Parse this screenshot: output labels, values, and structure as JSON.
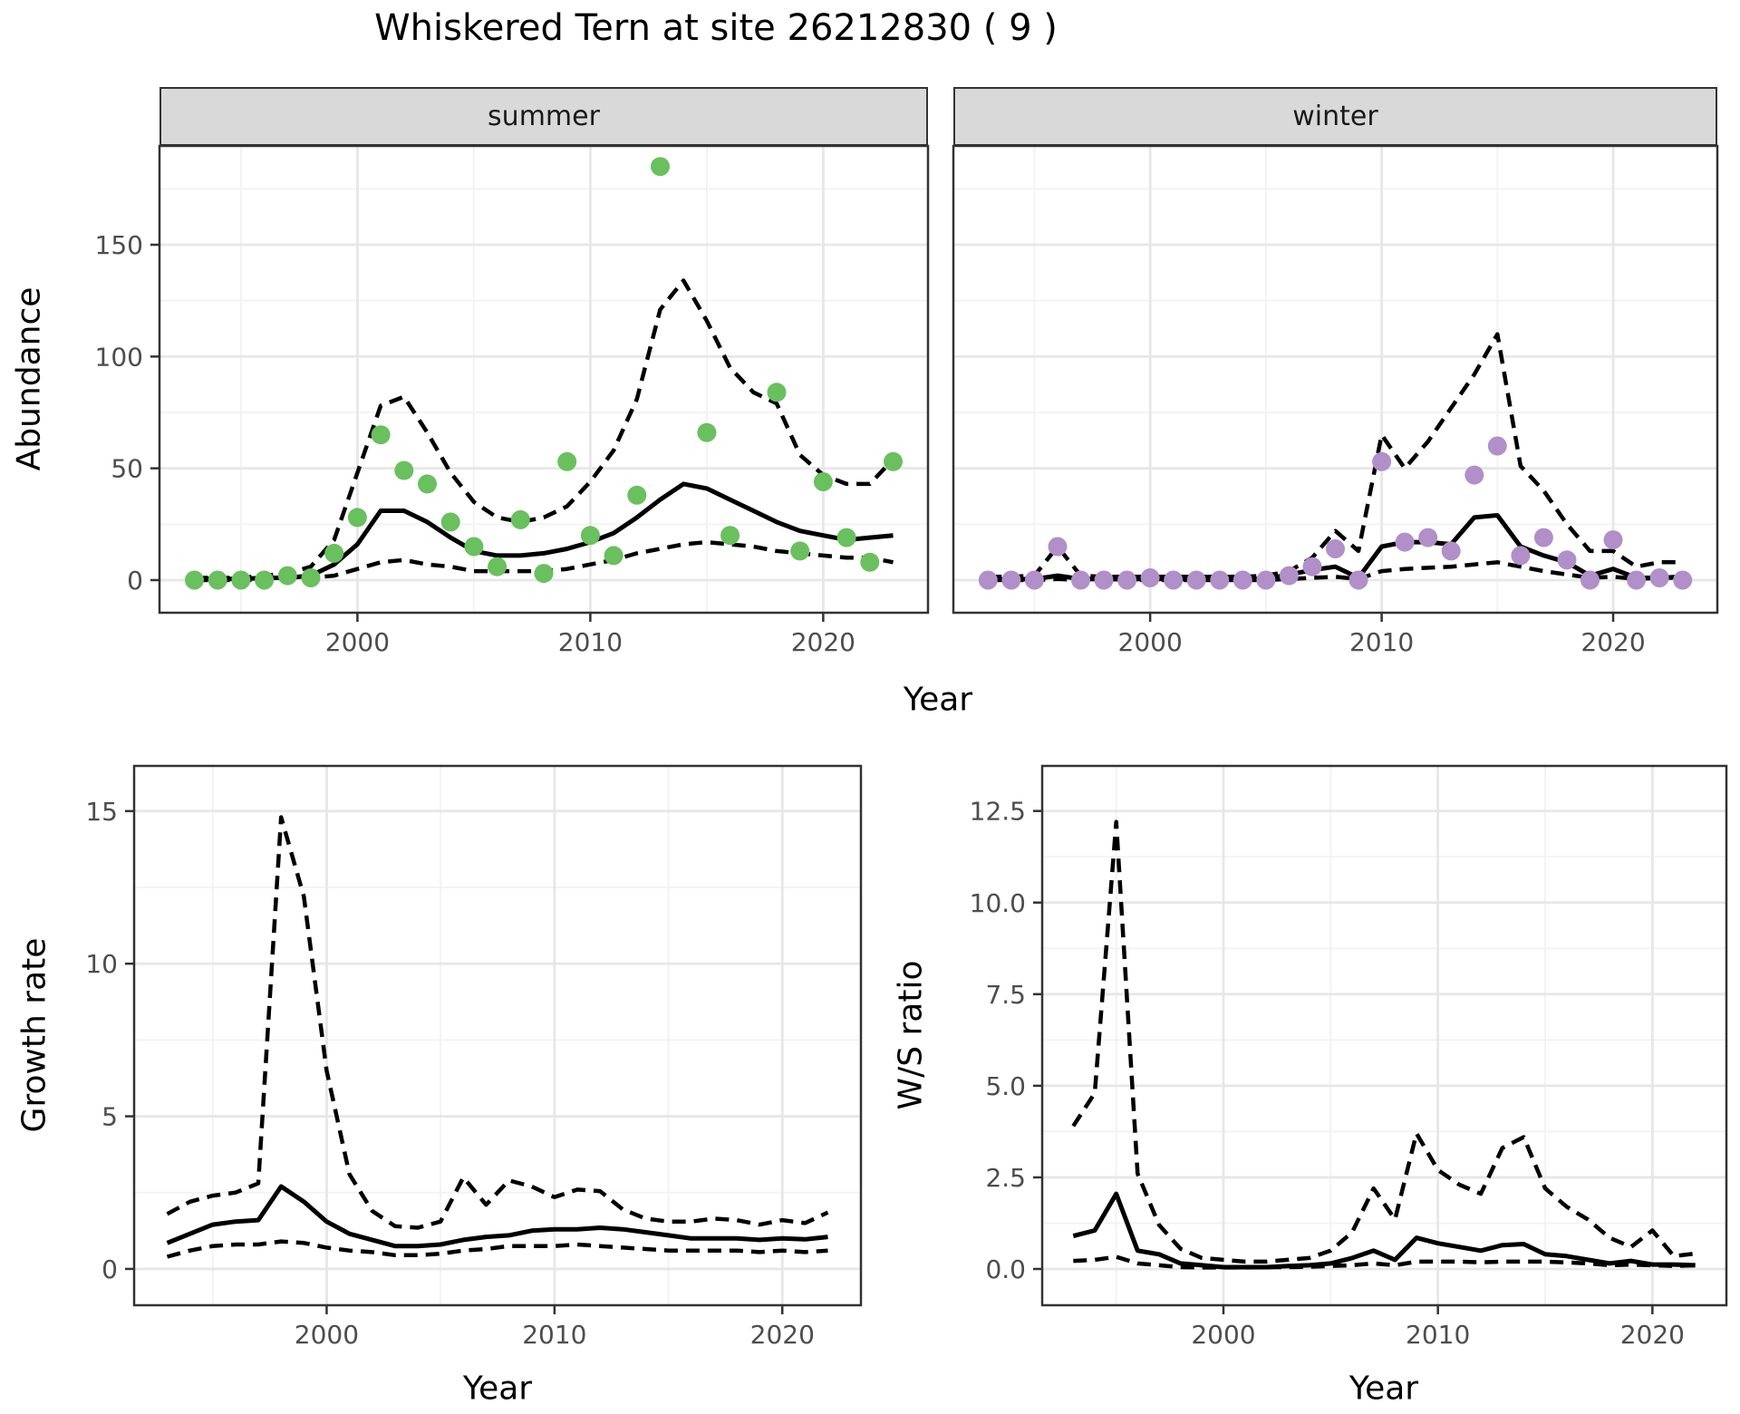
{
  "title": "Whiskered Tern at site 26212830 ( 9 )",
  "shared_x_label": "Year",
  "colors": {
    "summer_dot": "#6abf5f",
    "winter_dot": "#b18fc9",
    "line": "#000000",
    "strip_bg": "#d9d9d9",
    "panel_border": "#333333",
    "grid_major": "#e7e7e7",
    "grid_minor": "#f3f3f3",
    "tick_text": "#4d4d4d"
  },
  "chart_data": [
    {
      "id": "abundance_summer",
      "type": "scatter",
      "facet_label": "summer",
      "ylabel": "Abundance",
      "xlabel": "Year",
      "xlim": [
        1991.5,
        2024.5
      ],
      "ylim": [
        -14.6,
        194.2
      ],
      "xticks": {
        "values": [
          2000,
          2010,
          2020
        ],
        "labels": [
          "2000",
          "2010",
          "2020"
        ]
      },
      "yticks": {
        "values": [
          0,
          50,
          100,
          150
        ],
        "labels": [
          "0",
          "50",
          "100",
          "150"
        ]
      },
      "points": {
        "x": [
          1993,
          1994,
          1995,
          1996,
          1997,
          1998,
          1999,
          2000,
          2001,
          2002,
          2003,
          2004,
          2005,
          2006,
          2007,
          2008,
          2009,
          2010,
          2011,
          2012,
          2013,
          2015,
          2016,
          2018,
          2019,
          2020,
          2021,
          2022,
          2023
        ],
        "y": [
          0,
          0,
          0,
          0,
          2,
          1,
          12,
          28,
          65,
          49,
          43,
          26,
          15,
          6,
          27,
          3,
          53,
          20,
          11,
          38,
          185,
          66,
          20,
          84,
          13,
          44,
          19,
          8,
          53
        ]
      },
      "series": [
        {
          "name": "mean",
          "style": "solid",
          "x": [
            1993,
            1994,
            1995,
            1996,
            1997,
            1998,
            1999,
            2000,
            2001,
            2002,
            2003,
            2004,
            2005,
            2006,
            2007,
            2008,
            2009,
            2010,
            2011,
            2012,
            2013,
            2014,
            2015,
            2016,
            2017,
            2018,
            2019,
            2020,
            2021,
            2022,
            2023
          ],
          "y": [
            0.5,
            0.5,
            0.5,
            1,
            1,
            2,
            7,
            16,
            31,
            31,
            26,
            19,
            13,
            11,
            11,
            12,
            14,
            17,
            21,
            28,
            36,
            43,
            41,
            36,
            31,
            26,
            22,
            20,
            18,
            19,
            20
          ]
        },
        {
          "name": "upper_ci",
          "style": "dashed",
          "x": [
            1993,
            1994,
            1995,
            1996,
            1997,
            1998,
            1999,
            2000,
            2001,
            2002,
            2003,
            2004,
            2005,
            2006,
            2007,
            2008,
            2009,
            2010,
            2011,
            2012,
            2013,
            2014,
            2015,
            2016,
            2017,
            2018,
            2019,
            2020,
            2021,
            2022,
            2023
          ],
          "y": [
            1,
            1,
            1,
            2,
            3,
            6,
            18,
            48,
            78,
            82,
            66,
            48,
            35,
            28,
            26,
            28,
            33,
            44,
            58,
            81,
            121,
            134,
            116,
            95,
            84,
            79,
            56,
            47,
            43,
            43,
            54
          ]
        },
        {
          "name": "lower_ci",
          "style": "dashed",
          "x": [
            1993,
            1994,
            1995,
            1996,
            1997,
            1998,
            1999,
            2000,
            2001,
            2002,
            2003,
            2004,
            2005,
            2006,
            2007,
            2008,
            2009,
            2010,
            2011,
            2012,
            2013,
            2014,
            2015,
            2016,
            2017,
            2018,
            2019,
            2020,
            2021,
            2022,
            2023
          ],
          "y": [
            0,
            0,
            0,
            0,
            0.5,
            1,
            2,
            5,
            8,
            9,
            7,
            6,
            4,
            4,
            4,
            4,
            5,
            7,
            9,
            12,
            14,
            16,
            17,
            16,
            15,
            13,
            12,
            11,
            10,
            10,
            8
          ]
        }
      ]
    },
    {
      "id": "abundance_winter",
      "type": "scatter",
      "facet_label": "winter",
      "ylabel": "Abundance",
      "xlabel": "Year",
      "xlim": [
        1991.5,
        2024.5
      ],
      "ylim": [
        -14.6,
        194.2
      ],
      "xticks": {
        "values": [
          2000,
          2010,
          2020
        ],
        "labels": [
          "2000",
          "2010",
          "2020"
        ]
      },
      "yticks": {
        "values": [
          0,
          50,
          100,
          150
        ],
        "labels": [
          "0",
          "50",
          "100",
          "150"
        ]
      },
      "points": {
        "x": [
          1993,
          1994,
          1995,
          1996,
          1997,
          1998,
          1999,
          2000,
          2001,
          2002,
          2003,
          2004,
          2005,
          2006,
          2007,
          2008,
          2009,
          2010,
          2011,
          2012,
          2013,
          2014,
          2015,
          2016,
          2017,
          2018,
          2019,
          2020,
          2021,
          2022,
          2023
        ],
        "y": [
          0,
          0,
          0,
          15,
          0,
          0,
          0,
          1,
          0,
          0,
          0,
          0,
          0,
          2,
          6,
          14,
          0,
          53,
          17,
          19,
          13,
          47,
          60,
          11,
          19,
          9,
          0,
          18,
          0,
          1,
          0
        ]
      },
      "series": [
        {
          "name": "mean",
          "style": "solid",
          "x": [
            1993,
            1994,
            1995,
            1996,
            1997,
            1998,
            1999,
            2000,
            2001,
            2002,
            2003,
            2004,
            2005,
            2006,
            2007,
            2008,
            2009,
            2010,
            2011,
            2012,
            2013,
            2014,
            2015,
            2016,
            2017,
            2018,
            2019,
            2020,
            2021,
            2022,
            2023
          ],
          "y": [
            0.3,
            0.3,
            0.5,
            2,
            0.5,
            0.4,
            0.4,
            0.5,
            0.5,
            0.4,
            0.4,
            0.4,
            0.5,
            2.5,
            4.5,
            6,
            1,
            15,
            17,
            17,
            16,
            28,
            29,
            15,
            11,
            8,
            2,
            5,
            1,
            1,
            1.5
          ]
        },
        {
          "name": "upper_ci",
          "style": "dashed",
          "x": [
            1993,
            1994,
            1995,
            1996,
            1997,
            1998,
            1999,
            2000,
            2001,
            2002,
            2003,
            2004,
            2005,
            2006,
            2007,
            2008,
            2009,
            2010,
            2011,
            2012,
            2013,
            2014,
            2015,
            2016,
            2017,
            2018,
            2019,
            2020,
            2021,
            2022,
            2023
          ],
          "y": [
            1.5,
            1.5,
            2,
            15,
            2,
            1.5,
            1.5,
            1.5,
            1.5,
            1.5,
            1.5,
            1.5,
            2,
            4,
            10,
            22,
            13,
            65,
            50,
            62,
            77,
            92,
            110,
            51,
            40,
            25,
            13,
            13,
            6,
            8,
            8
          ]
        },
        {
          "name": "lower_ci",
          "style": "dashed",
          "x": [
            1993,
            1994,
            1995,
            1996,
            1997,
            1998,
            1999,
            2000,
            2001,
            2002,
            2003,
            2004,
            2005,
            2006,
            2007,
            2008,
            2009,
            2010,
            2011,
            2012,
            2013,
            2014,
            2015,
            2016,
            2017,
            2018,
            2019,
            2020,
            2021,
            2022,
            2023
          ],
          "y": [
            0,
            0,
            0,
            0.5,
            0,
            0,
            0,
            0,
            0,
            0,
            0,
            0,
            0,
            0.5,
            1,
            1.5,
            0.5,
            4,
            5,
            5.5,
            6,
            7,
            8,
            6,
            4,
            2.5,
            1,
            1.5,
            0.5,
            1,
            1
          ]
        }
      ]
    },
    {
      "id": "growth_rate",
      "type": "line",
      "facet_label": "",
      "ylabel": "Growth rate",
      "xlabel": "Year",
      "xlim": [
        1991.55,
        2023.45
      ],
      "ylim": [
        -1.19,
        16.48
      ],
      "xticks": {
        "values": [
          2000,
          2010,
          2020
        ],
        "labels": [
          "2000",
          "2010",
          "2020"
        ]
      },
      "yticks": {
        "values": [
          0,
          5,
          10,
          15
        ],
        "labels": [
          "0",
          "5",
          "10",
          "15"
        ]
      },
      "series": [
        {
          "name": "mean",
          "style": "solid",
          "x": [
            1993,
            1994,
            1995,
            1996,
            1997,
            1998,
            1999,
            2000,
            2001,
            2002,
            2003,
            2004,
            2005,
            2006,
            2007,
            2008,
            2009,
            2010,
            2011,
            2012,
            2013,
            2014,
            2015,
            2016,
            2017,
            2018,
            2019,
            2020,
            2021,
            2022
          ],
          "y": [
            0.85,
            1.15,
            1.45,
            1.55,
            1.6,
            2.7,
            2.2,
            1.55,
            1.15,
            0.95,
            0.75,
            0.75,
            0.8,
            0.95,
            1.05,
            1.1,
            1.25,
            1.3,
            1.3,
            1.35,
            1.3,
            1.2,
            1.1,
            1.0,
            1.0,
            1.0,
            0.95,
            1.0,
            0.97,
            1.05
          ]
        },
        {
          "name": "upper_ci",
          "style": "dashed",
          "x": [
            1993,
            1994,
            1995,
            1996,
            1997,
            1998,
            1999,
            2000,
            2001,
            2002,
            2003,
            2004,
            2005,
            2006,
            2007,
            2008,
            2009,
            2010,
            2011,
            2012,
            2013,
            2014,
            2015,
            2016,
            2017,
            2018,
            2019,
            2020,
            2021,
            2022
          ],
          "y": [
            1.8,
            2.2,
            2.4,
            2.5,
            2.8,
            14.8,
            12.2,
            6.5,
            3.1,
            1.9,
            1.4,
            1.35,
            1.55,
            3.0,
            2.1,
            2.9,
            2.7,
            2.35,
            2.6,
            2.55,
            1.95,
            1.65,
            1.55,
            1.55,
            1.65,
            1.6,
            1.45,
            1.6,
            1.5,
            1.85
          ]
        },
        {
          "name": "lower_ci",
          "style": "dashed",
          "x": [
            1993,
            1994,
            1995,
            1996,
            1997,
            1998,
            1999,
            2000,
            2001,
            2002,
            2003,
            2004,
            2005,
            2006,
            2007,
            2008,
            2009,
            2010,
            2011,
            2012,
            2013,
            2014,
            2015,
            2016,
            2017,
            2018,
            2019,
            2020,
            2021,
            2022
          ],
          "y": [
            0.4,
            0.6,
            0.75,
            0.8,
            0.8,
            0.9,
            0.85,
            0.7,
            0.6,
            0.55,
            0.45,
            0.45,
            0.5,
            0.6,
            0.65,
            0.75,
            0.75,
            0.75,
            0.8,
            0.75,
            0.7,
            0.65,
            0.6,
            0.6,
            0.6,
            0.6,
            0.55,
            0.6,
            0.55,
            0.6
          ]
        }
      ]
    },
    {
      "id": "ws_ratio",
      "type": "line",
      "facet_label": "",
      "ylabel": "W/S ratio",
      "xlabel": "Year",
      "xlim": [
        1991.55,
        2023.45
      ],
      "ylim": [
        -0.99,
        13.73
      ],
      "xticks": {
        "values": [
          2000,
          2010,
          2020
        ],
        "labels": [
          "2000",
          "2010",
          "2020"
        ]
      },
      "yticks": {
        "values": [
          0,
          2.5,
          5,
          7.5,
          10,
          12.5
        ],
        "labels": [
          "0.0",
          "2.5",
          "5.0",
          "7.5",
          "10.0",
          "12.5"
        ]
      },
      "series": [
        {
          "name": "mean",
          "style": "solid",
          "x": [
            1993,
            1994,
            1995,
            1996,
            1997,
            1998,
            1999,
            2000,
            2001,
            2002,
            2003,
            2004,
            2005,
            2006,
            2007,
            2008,
            2009,
            2010,
            2011,
            2012,
            2013,
            2014,
            2015,
            2016,
            2017,
            2018,
            2019,
            2020,
            2021,
            2022
          ],
          "y": [
            0.9,
            1.05,
            2.05,
            0.5,
            0.4,
            0.15,
            0.1,
            0.05,
            0.05,
            0.05,
            0.08,
            0.1,
            0.15,
            0.3,
            0.5,
            0.25,
            0.85,
            0.7,
            0.6,
            0.5,
            0.65,
            0.68,
            0.4,
            0.35,
            0.25,
            0.15,
            0.22,
            0.12,
            0.12,
            0.1
          ]
        },
        {
          "name": "upper_ci",
          "style": "dashed",
          "x": [
            1993,
            1994,
            1995,
            1996,
            1997,
            1998,
            1999,
            2000,
            2001,
            2002,
            2003,
            2004,
            2005,
            2006,
            2007,
            2008,
            2009,
            2010,
            2011,
            2012,
            2013,
            2014,
            2015,
            2016,
            2017,
            2018,
            2019,
            2020,
            2021,
            2022
          ],
          "y": [
            3.9,
            4.8,
            12.2,
            2.6,
            1.2,
            0.55,
            0.3,
            0.25,
            0.2,
            0.2,
            0.25,
            0.3,
            0.5,
            1.0,
            2.2,
            1.35,
            3.7,
            2.7,
            2.3,
            2.05,
            3.3,
            3.6,
            2.2,
            1.7,
            1.35,
            0.85,
            0.6,
            1.05,
            0.35,
            0.42
          ]
        },
        {
          "name": "lower_ci",
          "style": "dashed",
          "x": [
            1993,
            1994,
            1995,
            1996,
            1997,
            1998,
            1999,
            2000,
            2001,
            2002,
            2003,
            2004,
            2005,
            2006,
            2007,
            2008,
            2009,
            2010,
            2011,
            2012,
            2013,
            2014,
            2015,
            2016,
            2017,
            2018,
            2019,
            2020,
            2021,
            2022
          ],
          "y": [
            0.22,
            0.25,
            0.33,
            0.15,
            0.1,
            0.05,
            0.04,
            0.04,
            0.04,
            0.05,
            0.05,
            0.06,
            0.08,
            0.1,
            0.15,
            0.1,
            0.2,
            0.2,
            0.2,
            0.18,
            0.2,
            0.2,
            0.2,
            0.18,
            0.15,
            0.1,
            0.12,
            0.1,
            0.08,
            0.1
          ]
        }
      ]
    }
  ]
}
